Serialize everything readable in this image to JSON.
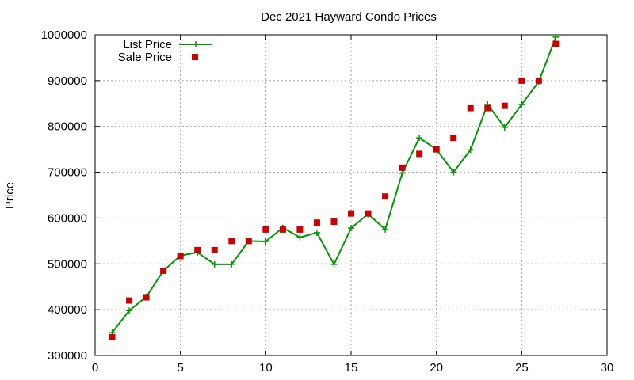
{
  "chart_data": {
    "type": "line",
    "title": "Dec 2021 Hayward Condo Prices",
    "xlabel": "",
    "ylabel": "Price",
    "xlim": [
      0,
      30
    ],
    "ylim": [
      300000,
      1000000
    ],
    "x_ticks": [
      "0",
      "5",
      "10",
      "15",
      "20",
      "25",
      "30"
    ],
    "y_ticks": [
      "300000",
      "400000",
      "500000",
      "600000",
      "700000",
      "800000",
      "900000",
      "1000000"
    ],
    "grid": true,
    "legend_placement": "top-left",
    "series": [
      {
        "name": "List Price",
        "style": "line-with-plus-markers",
        "color": "#009900",
        "x": [
          1,
          2,
          3,
          4,
          5,
          6,
          7,
          8,
          9,
          10,
          11,
          12,
          13,
          14,
          15,
          16,
          17,
          18,
          19,
          20,
          21,
          22,
          23,
          24,
          25,
          26,
          27
        ],
        "values": [
          350000,
          398000,
          428000,
          485000,
          518000,
          525000,
          499000,
          499000,
          550000,
          549000,
          579000,
          558000,
          568000,
          499000,
          578000,
          609000,
          575000,
          698000,
          775000,
          750000,
          700000,
          749000,
          848000,
          798000,
          848000,
          898000,
          995000
        ]
      },
      {
        "name": "Sale Price",
        "style": "square-markers",
        "color": "#cc0000",
        "x": [
          1,
          2,
          3,
          4,
          5,
          6,
          7,
          8,
          9,
          10,
          11,
          12,
          13,
          14,
          15,
          16,
          17,
          18,
          19,
          20,
          21,
          22,
          23,
          24,
          25,
          26,
          27
        ],
        "values": [
          340000,
          420000,
          427000,
          485000,
          517000,
          530000,
          530000,
          550000,
          550000,
          575000,
          575000,
          575000,
          590000,
          592000,
          610000,
          610000,
          647000,
          710000,
          740000,
          750000,
          775000,
          840000,
          840000,
          845000,
          900000,
          900000,
          980000
        ]
      }
    ]
  }
}
